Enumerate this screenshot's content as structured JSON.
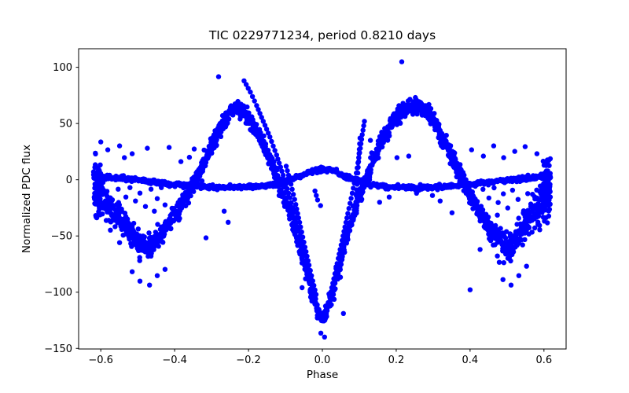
{
  "window": {
    "background": "#ffffff"
  },
  "chart_data": {
    "type": "scatter",
    "title": "TIC 0229771234, period 0.8210 days",
    "xlabel": "Phase",
    "ylabel": "Normalized PDC flux",
    "xlim": [
      -0.66,
      0.66
    ],
    "ylim": [
      -150.5,
      116.5
    ],
    "grid": false,
    "legend": null,
    "marker": {
      "color": "#0000ff",
      "radius": 3.2
    },
    "seed": 20240817,
    "xtick_values": [
      -0.6,
      -0.4,
      -0.2,
      0.0,
      0.2,
      0.4,
      0.6
    ],
    "xtick_labels": [
      "−0.6",
      "−0.4",
      "−0.2",
      "0.0",
      "0.2",
      "0.4",
      "0.6"
    ],
    "ytick_values": [
      100,
      50,
      0,
      -50,
      -100,
      -150
    ],
    "ytick_labels": [
      "100",
      "50",
      "0",
      "−50",
      "−100",
      "−150"
    ],
    "series": [
      {
        "name": "main-amplitude-band",
        "kind": "band",
        "step": 0.0026,
        "per_step": 4,
        "points": [
          [
            -0.617,
            -8,
            34
          ],
          [
            -0.6,
            -14,
            30
          ],
          [
            -0.575,
            -22,
            24
          ],
          [
            -0.55,
            -32,
            20
          ],
          [
            -0.525,
            -44,
            17
          ],
          [
            -0.5,
            -55,
            16
          ],
          [
            -0.48,
            -60,
            15
          ],
          [
            -0.46,
            -56,
            14
          ],
          [
            -0.435,
            -47,
            13
          ],
          [
            -0.41,
            -36,
            12
          ],
          [
            -0.385,
            -24,
            12
          ],
          [
            -0.36,
            -10,
            11
          ],
          [
            -0.33,
            8,
            11
          ],
          [
            -0.3,
            30,
            11
          ],
          [
            -0.27,
            49,
            10
          ],
          [
            -0.25,
            60,
            10
          ],
          [
            -0.23,
            64,
            9
          ],
          [
            -0.21,
            60,
            10
          ],
          [
            -0.185,
            48,
            10
          ],
          [
            -0.16,
            32,
            10
          ],
          [
            -0.135,
            14,
            11
          ],
          [
            -0.11,
            -8,
            11
          ],
          [
            -0.085,
            -32,
            11
          ],
          [
            -0.06,
            -60,
            11
          ],
          [
            -0.04,
            -85,
            11
          ],
          [
            -0.02,
            -110,
            10
          ],
          [
            -0.005,
            -122,
            8
          ],
          [
            0.005,
            -122,
            8
          ],
          [
            0.02,
            -108,
            10
          ],
          [
            0.04,
            -83,
            11
          ],
          [
            0.06,
            -58,
            11
          ],
          [
            0.085,
            -30,
            11
          ],
          [
            0.11,
            -5,
            11
          ],
          [
            0.135,
            16,
            11
          ],
          [
            0.16,
            34,
            10
          ],
          [
            0.185,
            49,
            10
          ],
          [
            0.21,
            59,
            10
          ],
          [
            0.235,
            65,
            9
          ],
          [
            0.26,
            66,
            9
          ],
          [
            0.285,
            60,
            10
          ],
          [
            0.31,
            48,
            10
          ],
          [
            0.335,
            32,
            11
          ],
          [
            0.36,
            14,
            11
          ],
          [
            0.385,
            -4,
            12
          ],
          [
            0.41,
            -20,
            12
          ],
          [
            0.435,
            -34,
            13
          ],
          [
            0.46,
            -46,
            14
          ],
          [
            0.485,
            -56,
            15
          ],
          [
            0.505,
            -62,
            16
          ],
          [
            0.53,
            -50,
            17
          ],
          [
            0.555,
            -36,
            20
          ],
          [
            0.58,
            -24,
            24
          ],
          [
            0.6,
            -14,
            30
          ],
          [
            0.617,
            -8,
            34
          ]
        ]
      },
      {
        "name": "low-amplitude-band",
        "kind": "band",
        "step": 0.0028,
        "per_step": 2,
        "points": [
          [
            -0.617,
            2,
            5
          ],
          [
            -0.58,
            2,
            3
          ],
          [
            -0.54,
            1,
            3
          ],
          [
            -0.5,
            0,
            3
          ],
          [
            -0.45,
            -2,
            3
          ],
          [
            -0.4,
            -4,
            3
          ],
          [
            -0.35,
            -5.5,
            3
          ],
          [
            -0.3,
            -6.5,
            3
          ],
          [
            -0.25,
            -7,
            3
          ],
          [
            -0.2,
            -6.5,
            3
          ],
          [
            -0.16,
            -5.5,
            3
          ],
          [
            -0.12,
            -3.5,
            3
          ],
          [
            -0.09,
            -1,
            3
          ],
          [
            -0.06,
            3,
            3
          ],
          [
            -0.03,
            7.5,
            3
          ],
          [
            0.0,
            9.5,
            3
          ],
          [
            0.03,
            7.5,
            3
          ],
          [
            0.06,
            3,
            3
          ],
          [
            0.09,
            -1,
            3
          ],
          [
            0.12,
            -3.5,
            3
          ],
          [
            0.16,
            -5.5,
            3
          ],
          [
            0.2,
            -6.5,
            3
          ],
          [
            0.25,
            -7,
            3
          ],
          [
            0.3,
            -6.5,
            3
          ],
          [
            0.35,
            -5.5,
            3
          ],
          [
            0.4,
            -4,
            3
          ],
          [
            0.45,
            -2,
            3
          ],
          [
            0.5,
            0,
            3
          ],
          [
            0.54,
            1,
            3
          ],
          [
            0.58,
            2,
            3
          ],
          [
            0.617,
            2,
            5
          ]
        ]
      },
      {
        "name": "left-edge-column",
        "kind": "band",
        "step": 0.0012,
        "per_step": 5,
        "points": [
          [
            -0.617,
            -6,
            36
          ],
          [
            -0.601,
            -9,
            33
          ]
        ]
      },
      {
        "name": "right-edge-column",
        "kind": "band",
        "step": 0.0012,
        "per_step": 5,
        "points": [
          [
            0.601,
            -9,
            33
          ],
          [
            0.617,
            -6,
            36
          ]
        ]
      },
      {
        "name": "eclipse-track-ingress-outer",
        "kind": "chain",
        "points": [
          [
            -0.212,
            88
          ],
          [
            -0.195,
            78
          ],
          [
            -0.178,
            66
          ],
          [
            -0.16,
            52
          ],
          [
            -0.142,
            38
          ],
          [
            -0.124,
            22
          ],
          [
            -0.106,
            4
          ],
          [
            -0.088,
            -16
          ],
          [
            -0.07,
            -38
          ],
          [
            -0.054,
            -58
          ],
          [
            -0.04,
            -76
          ],
          [
            -0.028,
            -92
          ],
          [
            -0.018,
            -106
          ]
        ]
      },
      {
        "name": "eclipse-track-ingress-inner",
        "kind": "chain",
        "points": [
          [
            -0.098,
            12
          ],
          [
            -0.085,
            -4
          ],
          [
            -0.072,
            -22
          ],
          [
            -0.059,
            -42
          ],
          [
            -0.047,
            -60
          ],
          [
            -0.036,
            -76
          ],
          [
            -0.026,
            -90
          ],
          [
            -0.017,
            -102
          ]
        ]
      },
      {
        "name": "eclipse-track-egress-diagonal",
        "kind": "chain",
        "points": [
          [
            0.02,
            -104
          ],
          [
            0.031,
            -88
          ],
          [
            0.043,
            -70
          ],
          [
            0.056,
            -50
          ],
          [
            0.069,
            -30
          ],
          [
            0.081,
            -12
          ],
          [
            0.092,
            6
          ],
          [
            0.101,
            24
          ],
          [
            0.108,
            40
          ],
          [
            0.114,
            52
          ]
        ]
      },
      {
        "name": "eclipse-track-egress-vertical",
        "kind": "chain",
        "points": [
          [
            0.092,
            -14
          ],
          [
            0.094,
            -4
          ],
          [
            0.096,
            6
          ],
          [
            0.098,
            16
          ],
          [
            0.1,
            27
          ],
          [
            0.102,
            37
          ]
        ]
      },
      {
        "name": "below-hump-dots",
        "kind": "chain",
        "points": [
          [
            -0.02,
            -10
          ],
          [
            -0.013,
            -18
          ],
          [
            -0.005,
            -23
          ]
        ]
      },
      {
        "name": "scattered-outliers",
        "kind": "points",
        "points": [
          [
            -0.6,
            33.6
          ],
          [
            -0.581,
            26.6
          ],
          [
            -0.549,
            30.1
          ],
          [
            -0.536,
            19.6
          ],
          [
            -0.515,
            23.1
          ],
          [
            -0.474,
            28.0
          ],
          [
            -0.415,
            28.7
          ],
          [
            -0.383,
            16.1
          ],
          [
            -0.347,
            27.3
          ],
          [
            -0.281,
            91.6
          ],
          [
            0.215,
            104.9
          ],
          [
            -0.553,
            -8.4
          ],
          [
            -0.532,
            -15.4
          ],
          [
            -0.521,
            -7.0
          ],
          [
            -0.506,
            -18.9
          ],
          [
            -0.494,
            -11.9
          ],
          [
            -0.479,
            -23.8
          ],
          [
            -0.464,
            -8.4
          ],
          [
            -0.447,
            -16.8
          ],
          [
            -0.436,
            -7.0
          ],
          [
            -0.455,
            -28.0
          ],
          [
            -0.426,
            -22.4
          ],
          [
            -0.574,
            -44.8
          ],
          [
            -0.549,
            -55.9
          ],
          [
            -0.515,
            -81.8
          ],
          [
            -0.494,
            -90.2
          ],
          [
            -0.468,
            -93.7
          ],
          [
            -0.447,
            -85.3
          ],
          [
            -0.426,
            -79.7
          ],
          [
            -0.315,
            -51.7
          ],
          [
            -0.255,
            -37.8
          ],
          [
            -0.266,
            -28.0
          ],
          [
            -0.117,
            -14.0
          ],
          [
            -0.36,
            20.0
          ],
          [
            -0.32,
            12.0
          ],
          [
            -0.004,
            -136.4
          ],
          [
            0.006,
            -139.9
          ],
          [
            0.049,
            -86.7
          ],
          [
            0.057,
            -118.9
          ],
          [
            0.032,
            -106.3
          ],
          [
            -0.055,
            -96.0
          ],
          [
            0.435,
            -8.5
          ],
          [
            0.451,
            -16.2
          ],
          [
            0.465,
            -7.2
          ],
          [
            0.476,
            -20.3
          ],
          [
            0.49,
            -12.5
          ],
          [
            0.502,
            -25.1
          ],
          [
            0.515,
            -9.3
          ],
          [
            0.53,
            -17.5
          ],
          [
            0.545,
            -27.6
          ],
          [
            0.556,
            -12.3
          ],
          [
            0.474,
            -31.5
          ],
          [
            0.4,
            -97.9
          ],
          [
            0.474,
            -67.8
          ],
          [
            0.479,
            -73.4
          ],
          [
            0.489,
            -88.8
          ],
          [
            0.511,
            -93.7
          ],
          [
            0.532,
            -85.3
          ],
          [
            0.553,
            -76.9
          ],
          [
            0.427,
            -62.0
          ],
          [
            0.404,
            26.6
          ],
          [
            0.436,
            21.0
          ],
          [
            0.464,
            30.1
          ],
          [
            0.491,
            19.6
          ],
          [
            0.521,
            25.2
          ],
          [
            0.549,
            29.4
          ],
          [
            0.581,
            23.1
          ],
          [
            0.598,
            16.5
          ],
          [
            0.319,
            -18.9
          ],
          [
            0.351,
            -29.4
          ],
          [
            0.298,
            -14.0
          ],
          [
            0.202,
            19.6
          ],
          [
            0.234,
            21.0
          ],
          [
            0.181,
            -15.4
          ],
          [
            0.255,
            -12.0
          ],
          [
            0.13,
            35.0
          ],
          [
            0.155,
            -20.0
          ]
        ]
      }
    ]
  }
}
